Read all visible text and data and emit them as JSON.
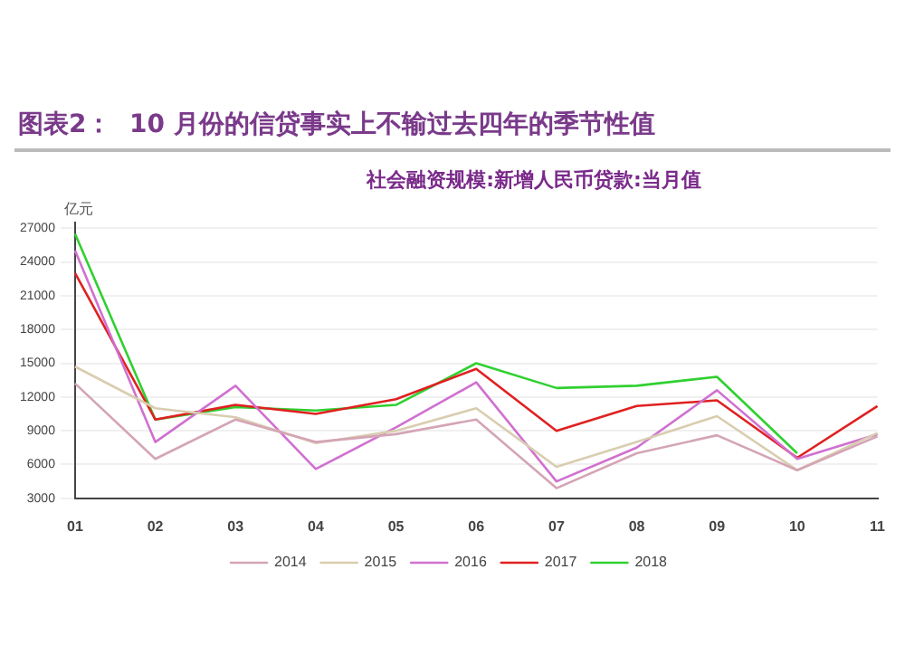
{
  "chart_data": {
    "type": "line",
    "title": "图表2：  10 月份的信贷事实上不输过去四年的季节性值",
    "subtitle": "社会融资规模:新增人民币贷款:当月值",
    "ylabel": "亿元",
    "categories": [
      "01",
      "02",
      "03",
      "04",
      "05",
      "06",
      "07",
      "08",
      "09",
      "10",
      "11"
    ],
    "series": [
      {
        "name": "2014",
        "color": "#d4a5b5",
        "values": [
          13200,
          6500,
          10000,
          8000,
          8700,
          10000,
          3900,
          7000,
          8600,
          5500,
          8500
        ]
      },
      {
        "name": "2015",
        "color": "#d9cdb0",
        "values": [
          14700,
          11000,
          10200,
          7900,
          9000,
          11000,
          5800,
          8000,
          10300,
          5500,
          8800
        ]
      },
      {
        "name": "2016",
        "color": "#d070d0",
        "values": [
          25000,
          8000,
          13000,
          5600,
          9300,
          13300,
          4500,
          7500,
          12600,
          6500,
          8700
        ]
      },
      {
        "name": "2017",
        "color": "#e02020",
        "values": [
          23000,
          10000,
          11300,
          10500,
          11800,
          14500,
          9000,
          11200,
          11700,
          6600,
          11200
        ]
      },
      {
        "name": "2018",
        "color": "#30d030",
        "values": [
          26500,
          10000,
          11100,
          10800,
          11300,
          15000,
          12800,
          13000,
          13800,
          7000,
          null
        ]
      }
    ],
    "ylim": [
      3000,
      27500
    ],
    "yticks": [
      3000,
      6000,
      9000,
      12000,
      15000,
      18000,
      21000,
      24000,
      27000
    ],
    "grid": "y",
    "legend": "bottom",
    "marker": "none",
    "line_style": "solid"
  }
}
